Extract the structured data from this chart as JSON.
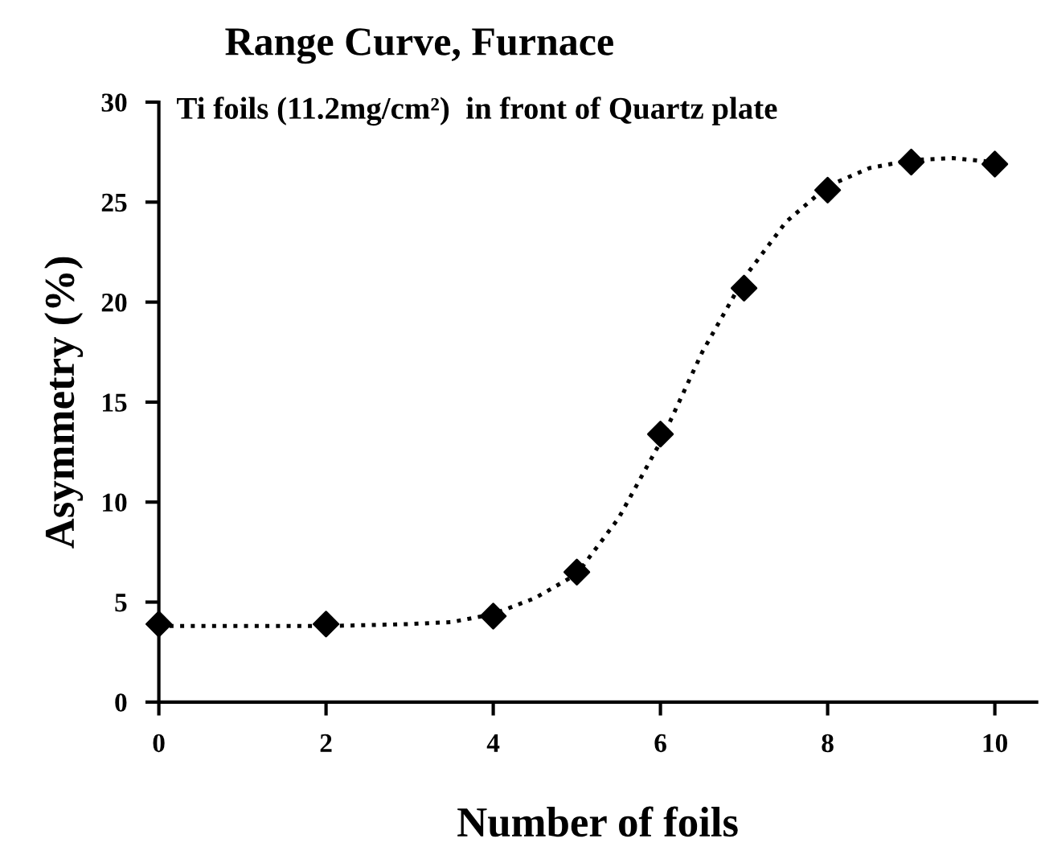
{
  "chart_data": {
    "type": "scatter",
    "title": "Range Curve, Furnace",
    "subtitle": "Ti foils (11.2mg/cm²)  in front of Quartz plate",
    "xlabel": "Number of foils",
    "ylabel": "Asymmetry (%)",
    "series": [
      {
        "color": "#000000",
        "marker": "diamond",
        "x": [
          0,
          2,
          4,
          5,
          6,
          7,
          8,
          9,
          10
        ],
        "values": [
          3.9,
          3.9,
          4.3,
          6.5,
          13.4,
          20.7,
          25.6,
          27.0,
          26.9
        ]
      },
      {
        "type": "line",
        "color": "#000000",
        "marker": "none",
        "line_style": "dotted",
        "x": [
          0,
          1,
          2,
          3,
          3.5,
          4,
          4.5,
          5,
          5.5,
          6,
          6.5,
          7,
          7.5,
          8,
          8.5,
          9,
          9.5,
          10
        ],
        "values": [
          3.8,
          3.8,
          3.8,
          3.9,
          4.0,
          4.4,
          5.2,
          6.4,
          9.2,
          13.0,
          17.5,
          21.2,
          24.0,
          25.8,
          26.7,
          27.1,
          27.2,
          27.0
        ]
      }
    ],
    "xlim": [
      0,
      10.5
    ],
    "ylim": [
      0,
      30
    ],
    "xticks": [
      0,
      2,
      4,
      6,
      8,
      10
    ],
    "yticks": [
      0,
      5,
      10,
      15,
      20,
      25,
      30
    ],
    "grid": false,
    "legend": false
  }
}
